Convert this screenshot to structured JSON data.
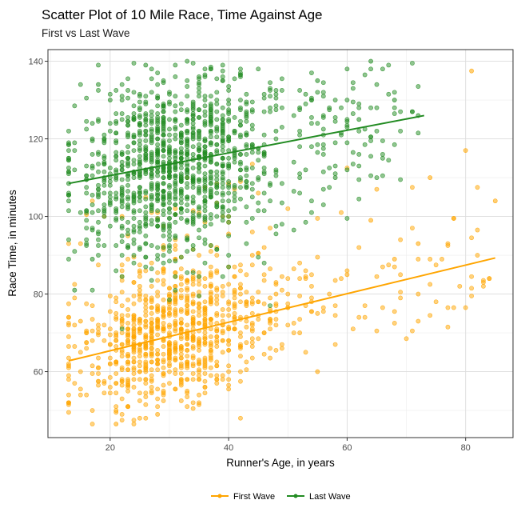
{
  "chart_data": {
    "type": "scatter",
    "title": "Scatter Plot of 10 Mile Race, Time Against Age",
    "subtitle": "First vs Last Wave",
    "xlabel": "Runner's Age, in years",
    "ylabel": "Race Time, in minutes",
    "xlim": [
      9.5,
      88
    ],
    "ylim": [
      43,
      143
    ],
    "x_ticks": [
      20,
      40,
      60,
      80
    ],
    "y_ticks": [
      60,
      80,
      100,
      120,
      140
    ],
    "grid": true,
    "legend_position": "bottom",
    "series": [
      {
        "name": "First Wave",
        "color": "#FFA500",
        "trend": {
          "x": [
            13,
            85
          ],
          "y": [
            62.8,
            89.3
          ]
        },
        "point_count": 1000,
        "x_range": [
          13,
          85
        ],
        "y_range": [
          46.5,
          137.5
        ],
        "samples": [
          [
            13,
            61.5
          ],
          [
            15,
            73
          ],
          [
            16,
            100.5
          ],
          [
            18,
            70
          ],
          [
            21,
            46.5
          ],
          [
            22,
            100
          ],
          [
            24,
            58
          ],
          [
            26,
            72
          ],
          [
            28,
            49
          ],
          [
            30,
            65
          ],
          [
            33,
            75
          ],
          [
            36,
            84
          ],
          [
            40,
            68
          ],
          [
            44,
            90
          ],
          [
            48,
            80
          ],
          [
            52,
            70
          ],
          [
            55,
            60
          ],
          [
            60,
            85
          ],
          [
            64,
            99
          ],
          [
            68,
            89
          ],
          [
            72,
            93
          ],
          [
            74,
            110
          ],
          [
            78,
            99.5
          ],
          [
            80,
            117
          ],
          [
            81,
            137.5
          ],
          [
            85,
            104
          ]
        ]
      },
      {
        "name": "Last Wave",
        "color": "#228B22",
        "trend": {
          "x": [
            13,
            73
          ],
          "y": [
            108.5,
            126
          ]
        },
        "point_count": 1300,
        "x_range": [
          13,
          72
        ],
        "y_range": [
          67,
          140
        ],
        "samples": [
          [
            13,
            108.5
          ],
          [
            13,
            111.5
          ],
          [
            14,
            81
          ],
          [
            17,
            89
          ],
          [
            18,
            134
          ],
          [
            20,
            130
          ],
          [
            22,
            95
          ],
          [
            24,
            105
          ],
          [
            26,
            139
          ],
          [
            28,
            120
          ],
          [
            30,
            110
          ],
          [
            33,
            125
          ],
          [
            36,
            115
          ],
          [
            40,
            130
          ],
          [
            44,
            118
          ],
          [
            48,
            122
          ],
          [
            52,
            128
          ],
          [
            55,
            135
          ],
          [
            58,
            110
          ],
          [
            62,
            125
          ],
          [
            64,
            140
          ],
          [
            68,
            130
          ],
          [
            71,
            127
          ],
          [
            72,
            126
          ]
        ]
      }
    ]
  }
}
